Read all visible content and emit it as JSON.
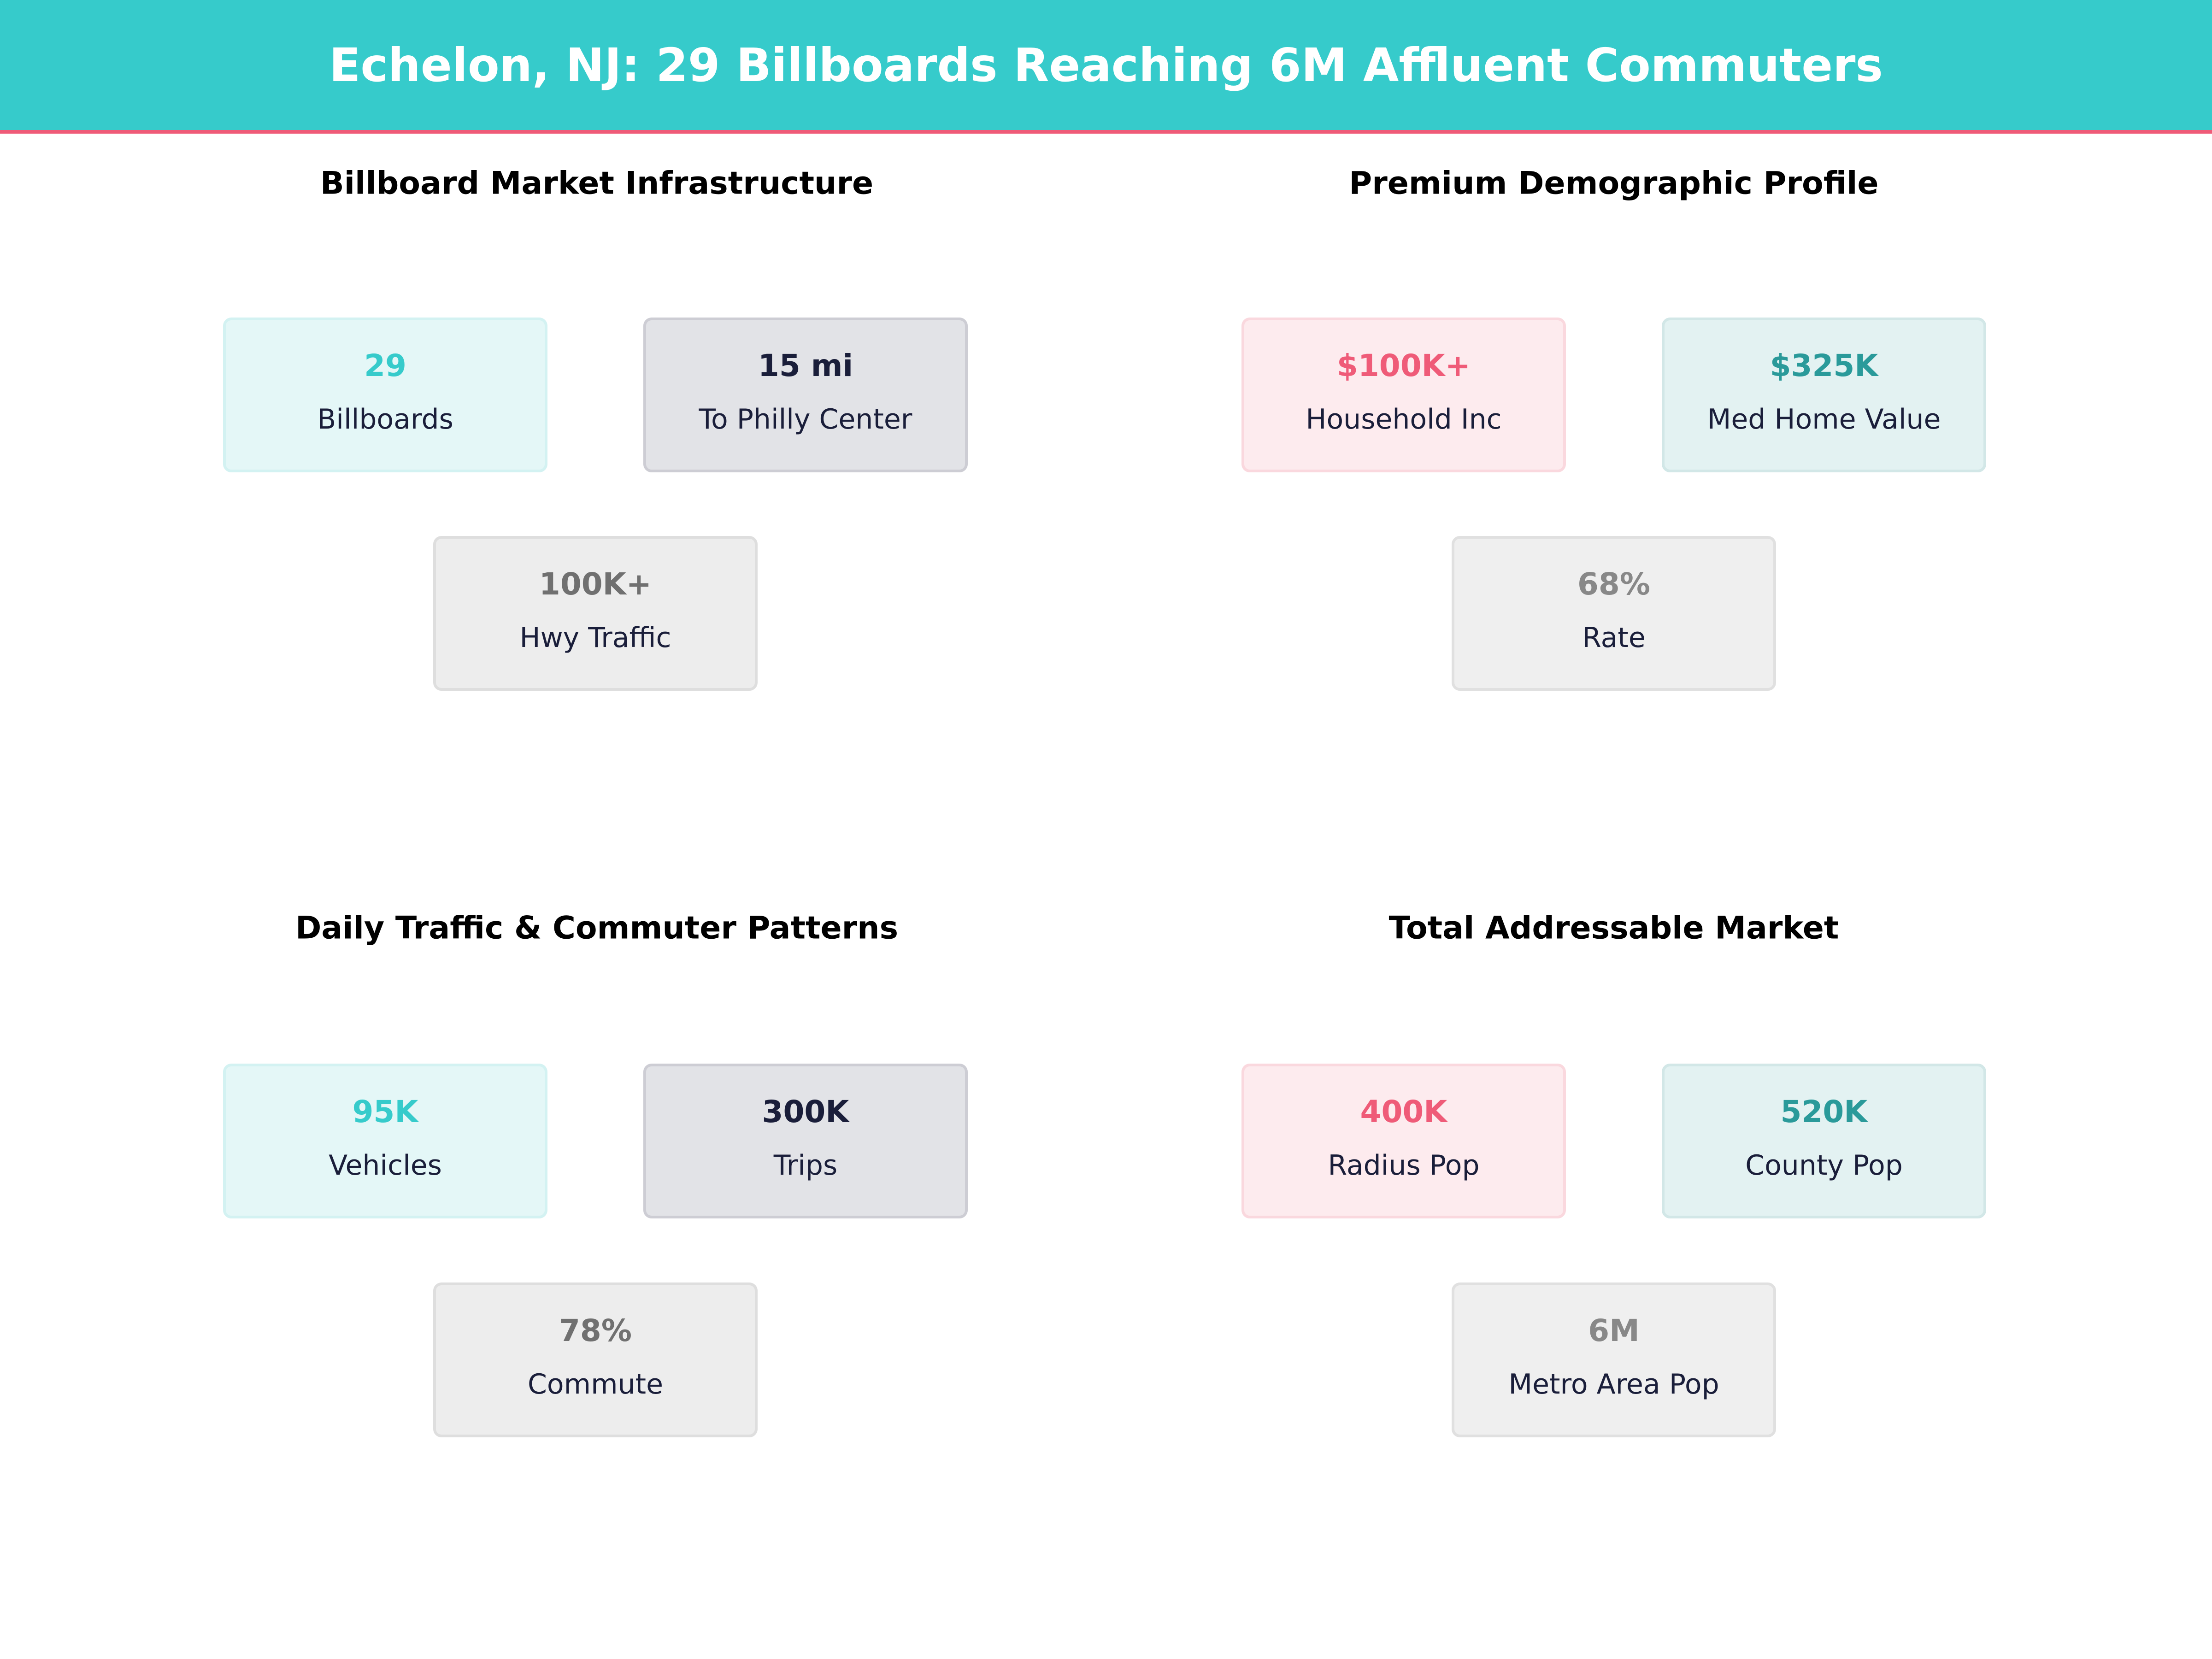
{
  "header": {
    "title": "Echelon, NJ: 29 Billboards Reaching 6M Affluent Commuters"
  },
  "colors": {
    "header": "#36CBCB",
    "accent_line": "#EF5B78",
    "teal": "#36CBCB",
    "navy": "#1a1e3a",
    "pink": "#EF5B78",
    "dark_teal": "#2A9A9A",
    "gray": "#707070"
  },
  "panels": [
    {
      "title": "Billboard Market Infrastructure",
      "cards": [
        {
          "value": "29",
          "label": "Billboards"
        },
        {
          "value": "15 mi",
          "label": "To Philly Center"
        },
        {
          "value": "100K+",
          "label": "Hwy Traffic"
        }
      ]
    },
    {
      "title": "Premium Demographic Profile",
      "cards": [
        {
          "value": "$100K+",
          "label": "Household Inc"
        },
        {
          "value": "$325K",
          "label": "Med Home Value"
        },
        {
          "value": "68%",
          "label": "Rate"
        }
      ]
    },
    {
      "title": "Daily Traffic & Commuter Patterns",
      "cards": [
        {
          "value": "95K",
          "label": "Vehicles"
        },
        {
          "value": "300K",
          "label": "Trips"
        },
        {
          "value": "78%",
          "label": "Commute"
        }
      ]
    },
    {
      "title": "Total Addressable Market",
      "cards": [
        {
          "value": "400K",
          "label": "Radius Pop"
        },
        {
          "value": "520K",
          "label": "County Pop"
        },
        {
          "value": "6M",
          "label": "Metro Area Pop"
        }
      ]
    }
  ]
}
